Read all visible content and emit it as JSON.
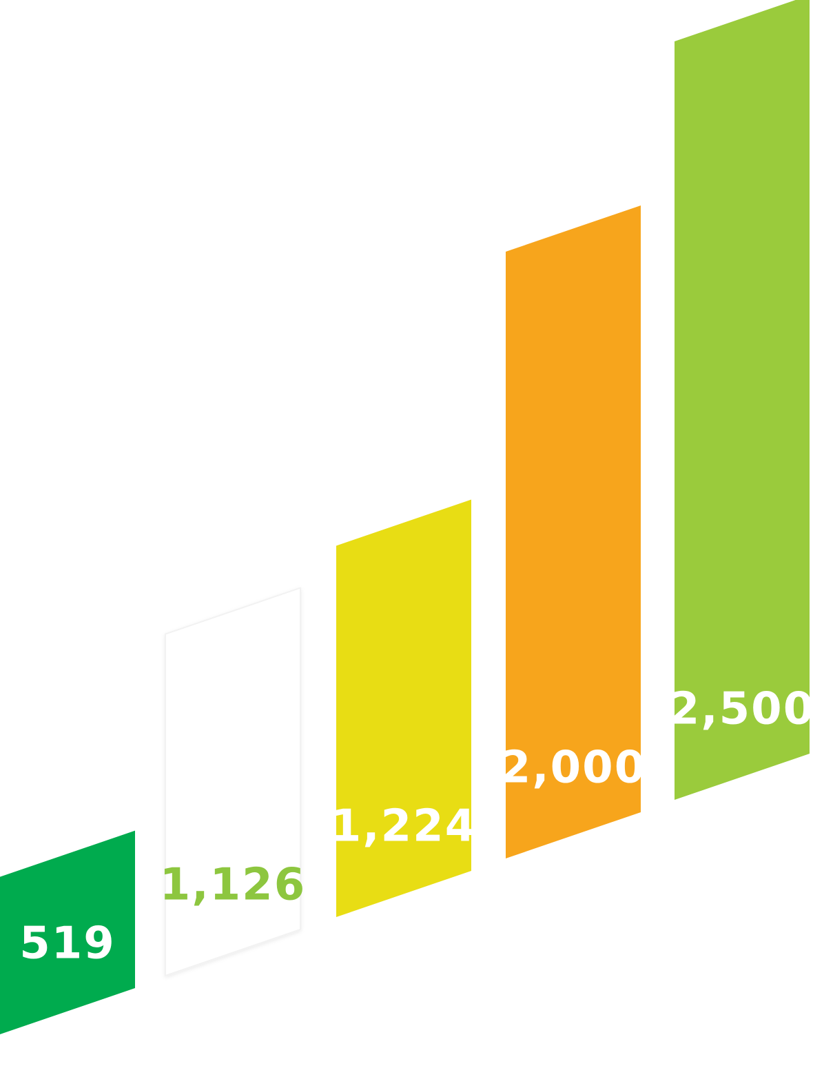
{
  "chart_data": {
    "type": "bar",
    "values": [
      519,
      1126,
      1224,
      2000,
      2500
    ],
    "value_labels": [
      "519",
      "1,126",
      "1,224",
      "2,000",
      "2,500"
    ],
    "colors": [
      "#00ab4e",
      "#ffffff",
      "#e8dd14",
      "#f7a51c",
      "#9acb3c"
    ],
    "label_colors": [
      "#ffffff",
      "#8dc63f",
      "#ffffff",
      "#ffffff",
      "#ffffff"
    ]
  }
}
